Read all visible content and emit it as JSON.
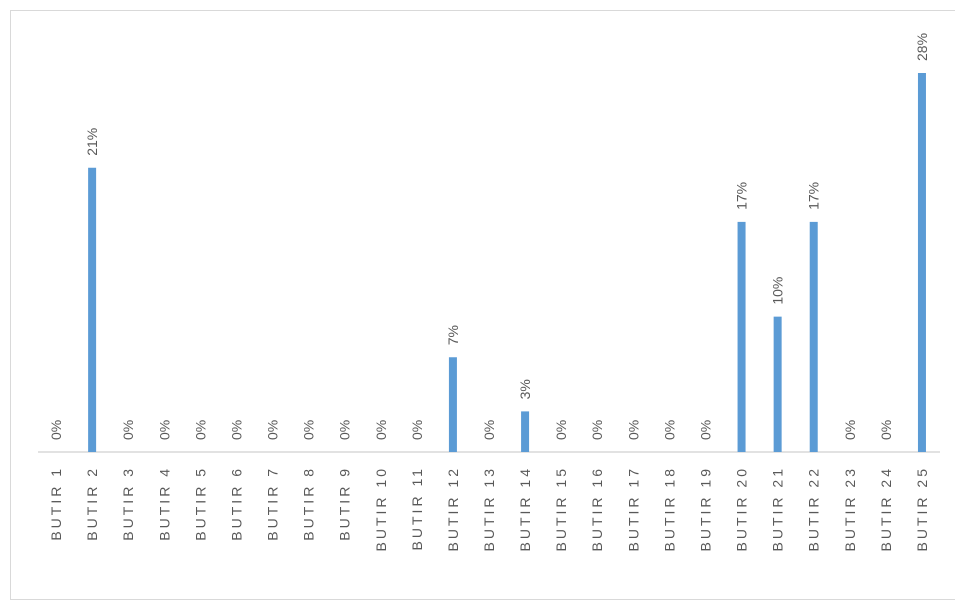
{
  "chart_data": {
    "type": "bar",
    "categories": [
      "BUTIR 1",
      "BUTIR 2",
      "BUTIR 3",
      "BUTIR 4",
      "BUTIR 5",
      "BUTIR 6",
      "BUTIR 7",
      "BUTIR 8",
      "BUTIR 9",
      "BUTIR 10",
      "BUTIR 11",
      "BUTIR 12",
      "BUTIR 13",
      "BUTIR 14",
      "BUTIR 15",
      "BUTIR 16",
      "BUTIR 17",
      "BUTIR 18",
      "BUTIR 19",
      "BUTIR 20",
      "BUTIR 21",
      "BUTIR 22",
      "BUTIR 23",
      "BUTIR 24",
      "BUTIR 25"
    ],
    "values": [
      0,
      21,
      0,
      0,
      0,
      0,
      0,
      0,
      0,
      0,
      0,
      7,
      0,
      3,
      0,
      0,
      0,
      0,
      0,
      17,
      10,
      17,
      0,
      0,
      28
    ],
    "data_labels": [
      "0%",
      "21%",
      "0%",
      "0%",
      "0%",
      "0%",
      "0%",
      "0%",
      "0%",
      "0%",
      "0%",
      "7%",
      "0%",
      "3%",
      "0%",
      "0%",
      "0%",
      "0%",
      "0%",
      "17%",
      "10%",
      "17%",
      "0%",
      "0%",
      "28%"
    ],
    "value_unit": "%",
    "title": "",
    "xlabel": "",
    "ylabel": "",
    "ylim": [
      0,
      28
    ],
    "grid": false,
    "legend": "none",
    "bar_color": "#5b9bd5",
    "axis_color": "#d9d9d9",
    "label_color": "#595959"
  }
}
